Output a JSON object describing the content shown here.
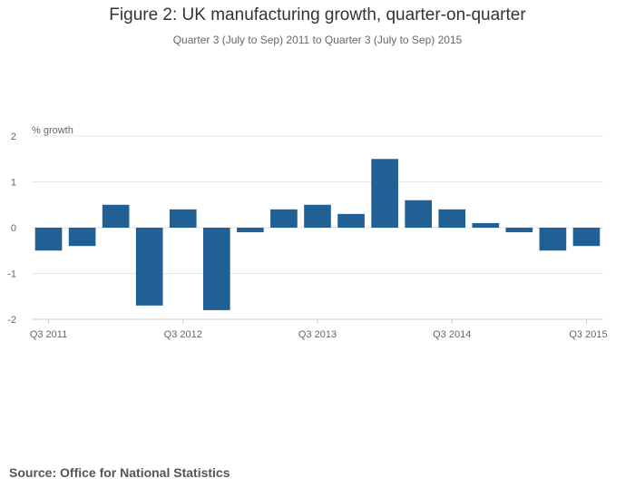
{
  "title": "Figure 2: UK manufacturing growth, quarter-on-quarter",
  "subtitle": "Quarter 3 (July to Sep) 2011 to Quarter 3 (July to Sep) 2015",
  "source": "Source: Office for National Statistics",
  "colors": {
    "bar": "#206095",
    "grid": "#e6e6e6",
    "axis": "#cccccc",
    "text": "#666666"
  },
  "chart_data": {
    "type": "bar",
    "ylabel": "% growth",
    "xlabel": "",
    "ylim": [
      -2,
      2
    ],
    "yticks": [
      2,
      1,
      0,
      -1,
      -2
    ],
    "grid": true,
    "categories": [
      "Q3 2011",
      "Q4 2011",
      "Q1 2012",
      "Q2 2012",
      "Q3 2012",
      "Q4 2012",
      "Q1 2013",
      "Q2 2013",
      "Q3 2013",
      "Q4 2013",
      "Q1 2014",
      "Q2 2014",
      "Q3 2014",
      "Q4 2014",
      "Q1 2015",
      "Q2 2015",
      "Q3 2015"
    ],
    "xtick_labels": [
      "Q3 2011",
      "Q3 2012",
      "Q3 2013",
      "Q3 2014",
      "Q3 2015"
    ],
    "values": [
      -0.5,
      -0.4,
      0.5,
      -1.7,
      0.4,
      -1.8,
      -0.1,
      0.4,
      0.5,
      0.3,
      1.5,
      0.6,
      0.4,
      0.1,
      -0.1,
      -0.5,
      -0.4
    ]
  }
}
